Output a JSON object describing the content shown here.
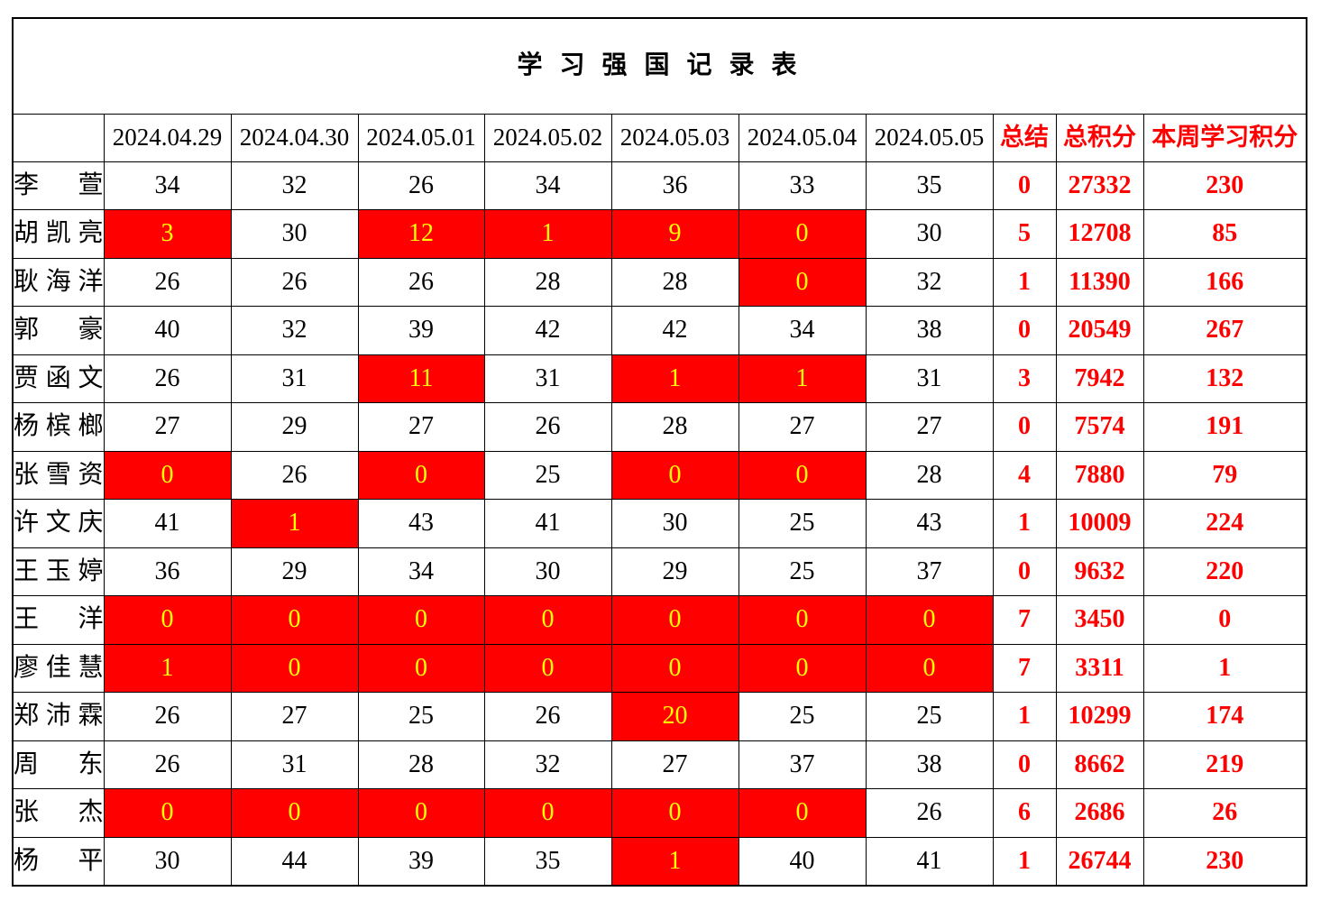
{
  "title": "学 习 强 国 记 录 表",
  "colors": {
    "highlight_bg": "#ff0000",
    "highlight_text": "#ffff00",
    "accent_text": "#ff0000",
    "text": "#000000",
    "background": "#ffffff"
  },
  "header": {
    "name_column": "",
    "dates": [
      "2024.04.29",
      "2024.04.30",
      "2024.05.01",
      "2024.05.02",
      "2024.05.03",
      "2024.05.04",
      "2024.05.05"
    ],
    "summary": [
      "总结",
      "总积分",
      "本周学习积分"
    ]
  },
  "rows": [
    {
      "name": "李萱",
      "daily": [
        {
          "v": "34",
          "hl": false
        },
        {
          "v": "32",
          "hl": false
        },
        {
          "v": "26",
          "hl": false
        },
        {
          "v": "34",
          "hl": false
        },
        {
          "v": "36",
          "hl": false
        },
        {
          "v": "33",
          "hl": false
        },
        {
          "v": "35",
          "hl": false
        }
      ],
      "summary": "0",
      "total": "27332",
      "week": "230"
    },
    {
      "name": "胡凯亮",
      "daily": [
        {
          "v": "3",
          "hl": true
        },
        {
          "v": "30",
          "hl": false
        },
        {
          "v": "12",
          "hl": true
        },
        {
          "v": "1",
          "hl": true
        },
        {
          "v": "9",
          "hl": true
        },
        {
          "v": "0",
          "hl": true
        },
        {
          "v": "30",
          "hl": false
        }
      ],
      "summary": "5",
      "total": "12708",
      "week": "85"
    },
    {
      "name": "耿海洋",
      "daily": [
        {
          "v": "26",
          "hl": false
        },
        {
          "v": "26",
          "hl": false
        },
        {
          "v": "26",
          "hl": false
        },
        {
          "v": "28",
          "hl": false
        },
        {
          "v": "28",
          "hl": false
        },
        {
          "v": "0",
          "hl": true
        },
        {
          "v": "32",
          "hl": false
        }
      ],
      "summary": "1",
      "total": "11390",
      "week": "166"
    },
    {
      "name": "郭豪",
      "daily": [
        {
          "v": "40",
          "hl": false
        },
        {
          "v": "32",
          "hl": false
        },
        {
          "v": "39",
          "hl": false
        },
        {
          "v": "42",
          "hl": false
        },
        {
          "v": "42",
          "hl": false
        },
        {
          "v": "34",
          "hl": false
        },
        {
          "v": "38",
          "hl": false
        }
      ],
      "summary": "0",
      "total": "20549",
      "week": "267"
    },
    {
      "name": "贾函文",
      "daily": [
        {
          "v": "26",
          "hl": false
        },
        {
          "v": "31",
          "hl": false
        },
        {
          "v": "11",
          "hl": true
        },
        {
          "v": "31",
          "hl": false
        },
        {
          "v": "1",
          "hl": true
        },
        {
          "v": "1",
          "hl": true
        },
        {
          "v": "31",
          "hl": false
        }
      ],
      "summary": "3",
      "total": "7942",
      "week": "132"
    },
    {
      "name": "杨槟榔",
      "daily": [
        {
          "v": "27",
          "hl": false
        },
        {
          "v": "29",
          "hl": false
        },
        {
          "v": "27",
          "hl": false
        },
        {
          "v": "26",
          "hl": false
        },
        {
          "v": "28",
          "hl": false
        },
        {
          "v": "27",
          "hl": false
        },
        {
          "v": "27",
          "hl": false
        }
      ],
      "summary": "0",
      "total": "7574",
      "week": "191"
    },
    {
      "name": "张雪资",
      "daily": [
        {
          "v": "0",
          "hl": true
        },
        {
          "v": "26",
          "hl": false
        },
        {
          "v": "0",
          "hl": true
        },
        {
          "v": "25",
          "hl": false
        },
        {
          "v": "0",
          "hl": true
        },
        {
          "v": "0",
          "hl": true
        },
        {
          "v": "28",
          "hl": false
        }
      ],
      "summary": "4",
      "total": "7880",
      "week": "79"
    },
    {
      "name": "许文庆",
      "daily": [
        {
          "v": "41",
          "hl": false
        },
        {
          "v": "1",
          "hl": true
        },
        {
          "v": "43",
          "hl": false
        },
        {
          "v": "41",
          "hl": false
        },
        {
          "v": "30",
          "hl": false
        },
        {
          "v": "25",
          "hl": false
        },
        {
          "v": "43",
          "hl": false
        }
      ],
      "summary": "1",
      "total": "10009",
      "week": "224"
    },
    {
      "name": "王玉婷",
      "daily": [
        {
          "v": "36",
          "hl": false
        },
        {
          "v": "29",
          "hl": false
        },
        {
          "v": "34",
          "hl": false
        },
        {
          "v": "30",
          "hl": false
        },
        {
          "v": "29",
          "hl": false
        },
        {
          "v": "25",
          "hl": false
        },
        {
          "v": "37",
          "hl": false
        }
      ],
      "summary": "0",
      "total": "9632",
      "week": "220"
    },
    {
      "name": "王洋",
      "daily": [
        {
          "v": "0",
          "hl": true
        },
        {
          "v": "0",
          "hl": true
        },
        {
          "v": "0",
          "hl": true
        },
        {
          "v": "0",
          "hl": true
        },
        {
          "v": "0",
          "hl": true
        },
        {
          "v": "0",
          "hl": true
        },
        {
          "v": "0",
          "hl": true
        }
      ],
      "summary": "7",
      "total": "3450",
      "week": "0"
    },
    {
      "name": "廖佳慧",
      "daily": [
        {
          "v": "1",
          "hl": true
        },
        {
          "v": "0",
          "hl": true
        },
        {
          "v": "0",
          "hl": true
        },
        {
          "v": "0",
          "hl": true
        },
        {
          "v": "0",
          "hl": true
        },
        {
          "v": "0",
          "hl": true
        },
        {
          "v": "0",
          "hl": true
        }
      ],
      "summary": "7",
      "total": "3311",
      "week": "1"
    },
    {
      "name": "郑沛霖",
      "daily": [
        {
          "v": "26",
          "hl": false
        },
        {
          "v": "27",
          "hl": false
        },
        {
          "v": "25",
          "hl": false
        },
        {
          "v": "26",
          "hl": false
        },
        {
          "v": "20",
          "hl": true
        },
        {
          "v": "25",
          "hl": false
        },
        {
          "v": "25",
          "hl": false
        }
      ],
      "summary": "1",
      "total": "10299",
      "week": "174"
    },
    {
      "name": "周东",
      "daily": [
        {
          "v": "26",
          "hl": false
        },
        {
          "v": "31",
          "hl": false
        },
        {
          "v": "28",
          "hl": false
        },
        {
          "v": "32",
          "hl": false
        },
        {
          "v": "27",
          "hl": false
        },
        {
          "v": "37",
          "hl": false
        },
        {
          "v": "38",
          "hl": false
        }
      ],
      "summary": "0",
      "total": "8662",
      "week": "219"
    },
    {
      "name": "张杰",
      "daily": [
        {
          "v": "0",
          "hl": true
        },
        {
          "v": "0",
          "hl": true
        },
        {
          "v": "0",
          "hl": true
        },
        {
          "v": "0",
          "hl": true
        },
        {
          "v": "0",
          "hl": true
        },
        {
          "v": "0",
          "hl": true
        },
        {
          "v": "26",
          "hl": false
        }
      ],
      "summary": "6",
      "total": "2686",
      "week": "26"
    },
    {
      "name": "杨平",
      "daily": [
        {
          "v": "30",
          "hl": false
        },
        {
          "v": "44",
          "hl": false
        },
        {
          "v": "39",
          "hl": false
        },
        {
          "v": "35",
          "hl": false
        },
        {
          "v": "1",
          "hl": true
        },
        {
          "v": "40",
          "hl": false
        },
        {
          "v": "41",
          "hl": false
        }
      ],
      "summary": "1",
      "total": "26744",
      "week": "230"
    }
  ]
}
